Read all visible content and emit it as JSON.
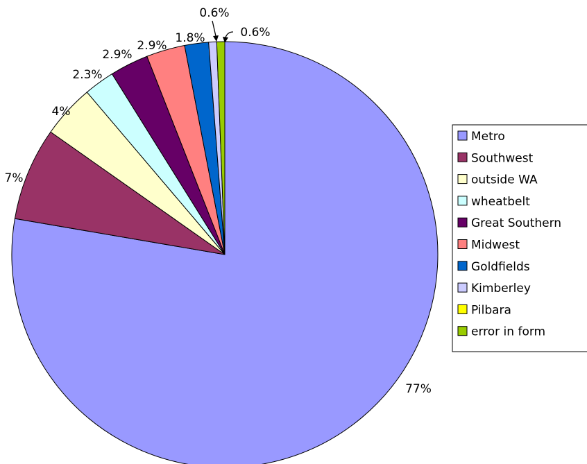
{
  "chart_data": {
    "type": "pie",
    "title": "",
    "legend_position": "right",
    "slices": [
      {
        "name": "Metro",
        "value": 77,
        "label": "77%",
        "color": "#9999ff"
      },
      {
        "name": "Southwest",
        "value": 7,
        "label": "7%",
        "color": "#993366"
      },
      {
        "name": "outside WA",
        "value": 4,
        "label": "4%",
        "color": "#ffffcc"
      },
      {
        "name": "wheatbelt",
        "value": 2.3,
        "label": "2.3%",
        "color": "#ccffff"
      },
      {
        "name": "Great Southern",
        "value": 2.9,
        "label": "2.9%",
        "color": "#660066"
      },
      {
        "name": "Midwest",
        "value": 2.9,
        "label": "2.9%",
        "color": "#ff8080"
      },
      {
        "name": "Goldfields",
        "value": 1.8,
        "label": "1.8%",
        "color": "#0066cc"
      },
      {
        "name": "Kimberley",
        "value": 0.6,
        "label": "0.6%",
        "color": "#ccccff"
      },
      {
        "name": "Pilbara",
        "value": 0,
        "label": "",
        "color": "#ffff00"
      },
      {
        "name": "error in form",
        "value": 0.6,
        "label": "0.6%",
        "color": "#99cc00"
      }
    ]
  }
}
